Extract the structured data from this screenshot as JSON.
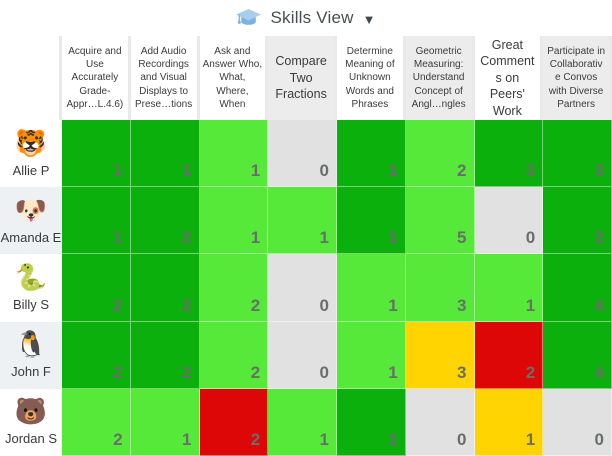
{
  "topbar": {
    "view_label": "Skills View"
  },
  "colors": {
    "dark_green": "#0cb00c",
    "light_green": "#56e93a",
    "yellow": "#ffd400",
    "red": "#de0707",
    "gray": "#e1e1e1",
    "accent_blue": "#8fc0e9"
  },
  "table": {
    "columns": [
      {
        "label": "Acquire and Use Accurately Grade-Appr…L.4.6)",
        "bg": "white"
      },
      {
        "label": "Add Audio Recordings and Visual Displays to Prese…tions",
        "bg": "white"
      },
      {
        "label": "Ask and Answer Who, What, Where, When",
        "bg": "white"
      },
      {
        "label": "Compare Two Fractions",
        "bg": "gray"
      },
      {
        "label": "Determine Meaning of Unknown Words and Phrases",
        "bg": "white"
      },
      {
        "label": "Geometric Measuring: Understand Concept of Angl…ngles",
        "bg": "gray"
      },
      {
        "label": "Great Comments on Peers' Work",
        "bg": "white"
      },
      {
        "label": "Participate in Collaborativ e Convos with Diverse Partners",
        "bg": "gray"
      }
    ],
    "students": [
      {
        "emoji": "🐯",
        "name": "Allie P",
        "stripe": false,
        "grades": [
          {
            "value": "1",
            "color": "dark_green"
          },
          {
            "value": "1",
            "color": "dark_green"
          },
          {
            "value": "1",
            "color": "light_green"
          },
          {
            "value": "0",
            "color": "gray"
          },
          {
            "value": "1",
            "color": "dark_green"
          },
          {
            "value": "2",
            "color": "light_green"
          },
          {
            "value": "3",
            "color": "dark_green"
          },
          {
            "value": "3",
            "color": "dark_green"
          }
        ]
      },
      {
        "emoji": "🐶",
        "name": "Amanda E",
        "stripe": true,
        "grades": [
          {
            "value": "1",
            "color": "dark_green"
          },
          {
            "value": "2",
            "color": "dark_green"
          },
          {
            "value": "1",
            "color": "light_green"
          },
          {
            "value": "1",
            "color": "light_green"
          },
          {
            "value": "1",
            "color": "dark_green"
          },
          {
            "value": "5",
            "color": "light_green"
          },
          {
            "value": "0",
            "color": "gray"
          },
          {
            "value": "2",
            "color": "dark_green"
          }
        ]
      },
      {
        "emoji": "🐍",
        "name": "Billy S",
        "stripe": false,
        "grades": [
          {
            "value": "2",
            "color": "dark_green"
          },
          {
            "value": "2",
            "color": "dark_green"
          },
          {
            "value": "2",
            "color": "light_green"
          },
          {
            "value": "0",
            "color": "gray"
          },
          {
            "value": "1",
            "color": "light_green"
          },
          {
            "value": "3",
            "color": "light_green"
          },
          {
            "value": "1",
            "color": "light_green"
          },
          {
            "value": "4",
            "color": "dark_green"
          }
        ]
      },
      {
        "emoji": "🐧",
        "name": "John F",
        "stripe": true,
        "grades": [
          {
            "value": "2",
            "color": "dark_green"
          },
          {
            "value": "2",
            "color": "dark_green"
          },
          {
            "value": "2",
            "color": "light_green"
          },
          {
            "value": "0",
            "color": "gray"
          },
          {
            "value": "1",
            "color": "light_green"
          },
          {
            "value": "3",
            "color": "yellow"
          },
          {
            "value": "2",
            "color": "red"
          },
          {
            "value": "4",
            "color": "dark_green"
          }
        ]
      },
      {
        "emoji": "🐻",
        "name": "Jordan S",
        "stripe": false,
        "grades": [
          {
            "value": "2",
            "color": "light_green"
          },
          {
            "value": "1",
            "color": "light_green"
          },
          {
            "value": "2",
            "color": "red"
          },
          {
            "value": "1",
            "color": "light_green"
          },
          {
            "value": "1",
            "color": "dark_green"
          },
          {
            "value": "0",
            "color": "gray"
          },
          {
            "value": "1",
            "color": "yellow"
          },
          {
            "value": "0",
            "color": "gray"
          }
        ]
      }
    ]
  }
}
